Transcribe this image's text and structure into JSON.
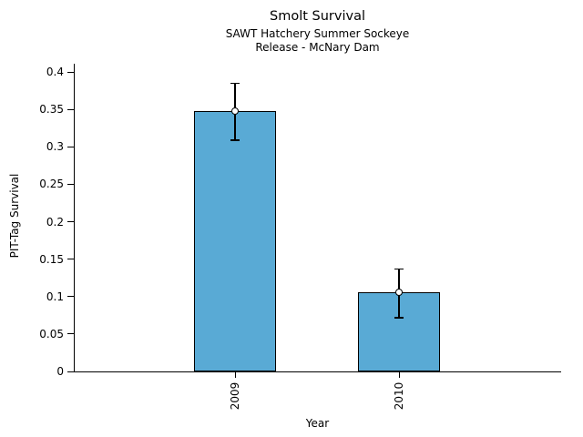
{
  "chart_data": {
    "type": "bar",
    "title": "Smolt Survival",
    "subtitle_lines": [
      "SAWT Hatchery Summer Sockeye",
      "Release - McNary Dam"
    ],
    "xlabel": "Year",
    "ylabel": "PIT-Tag Survival",
    "categories": [
      "2009",
      "2010"
    ],
    "values": [
      0.348,
      0.106
    ],
    "error_low": [
      0.309,
      0.072
    ],
    "error_high": [
      0.385,
      0.137
    ],
    "yticks": [
      0,
      0.05,
      0.1,
      0.15,
      0.2,
      0.25,
      0.3,
      0.35,
      0.4
    ],
    "ytick_labels": [
      "0",
      "0.05",
      "0.1",
      "0.15",
      "0.2",
      "0.25",
      "0.3",
      "0.35",
      "0.4"
    ],
    "ylim": [
      0,
      0.417
    ],
    "grid": false,
    "legend": null,
    "marker": "open-circle",
    "bar_color": "#59AAD5",
    "bar_edge_color": "#000000",
    "axis_color": "#000000"
  }
}
